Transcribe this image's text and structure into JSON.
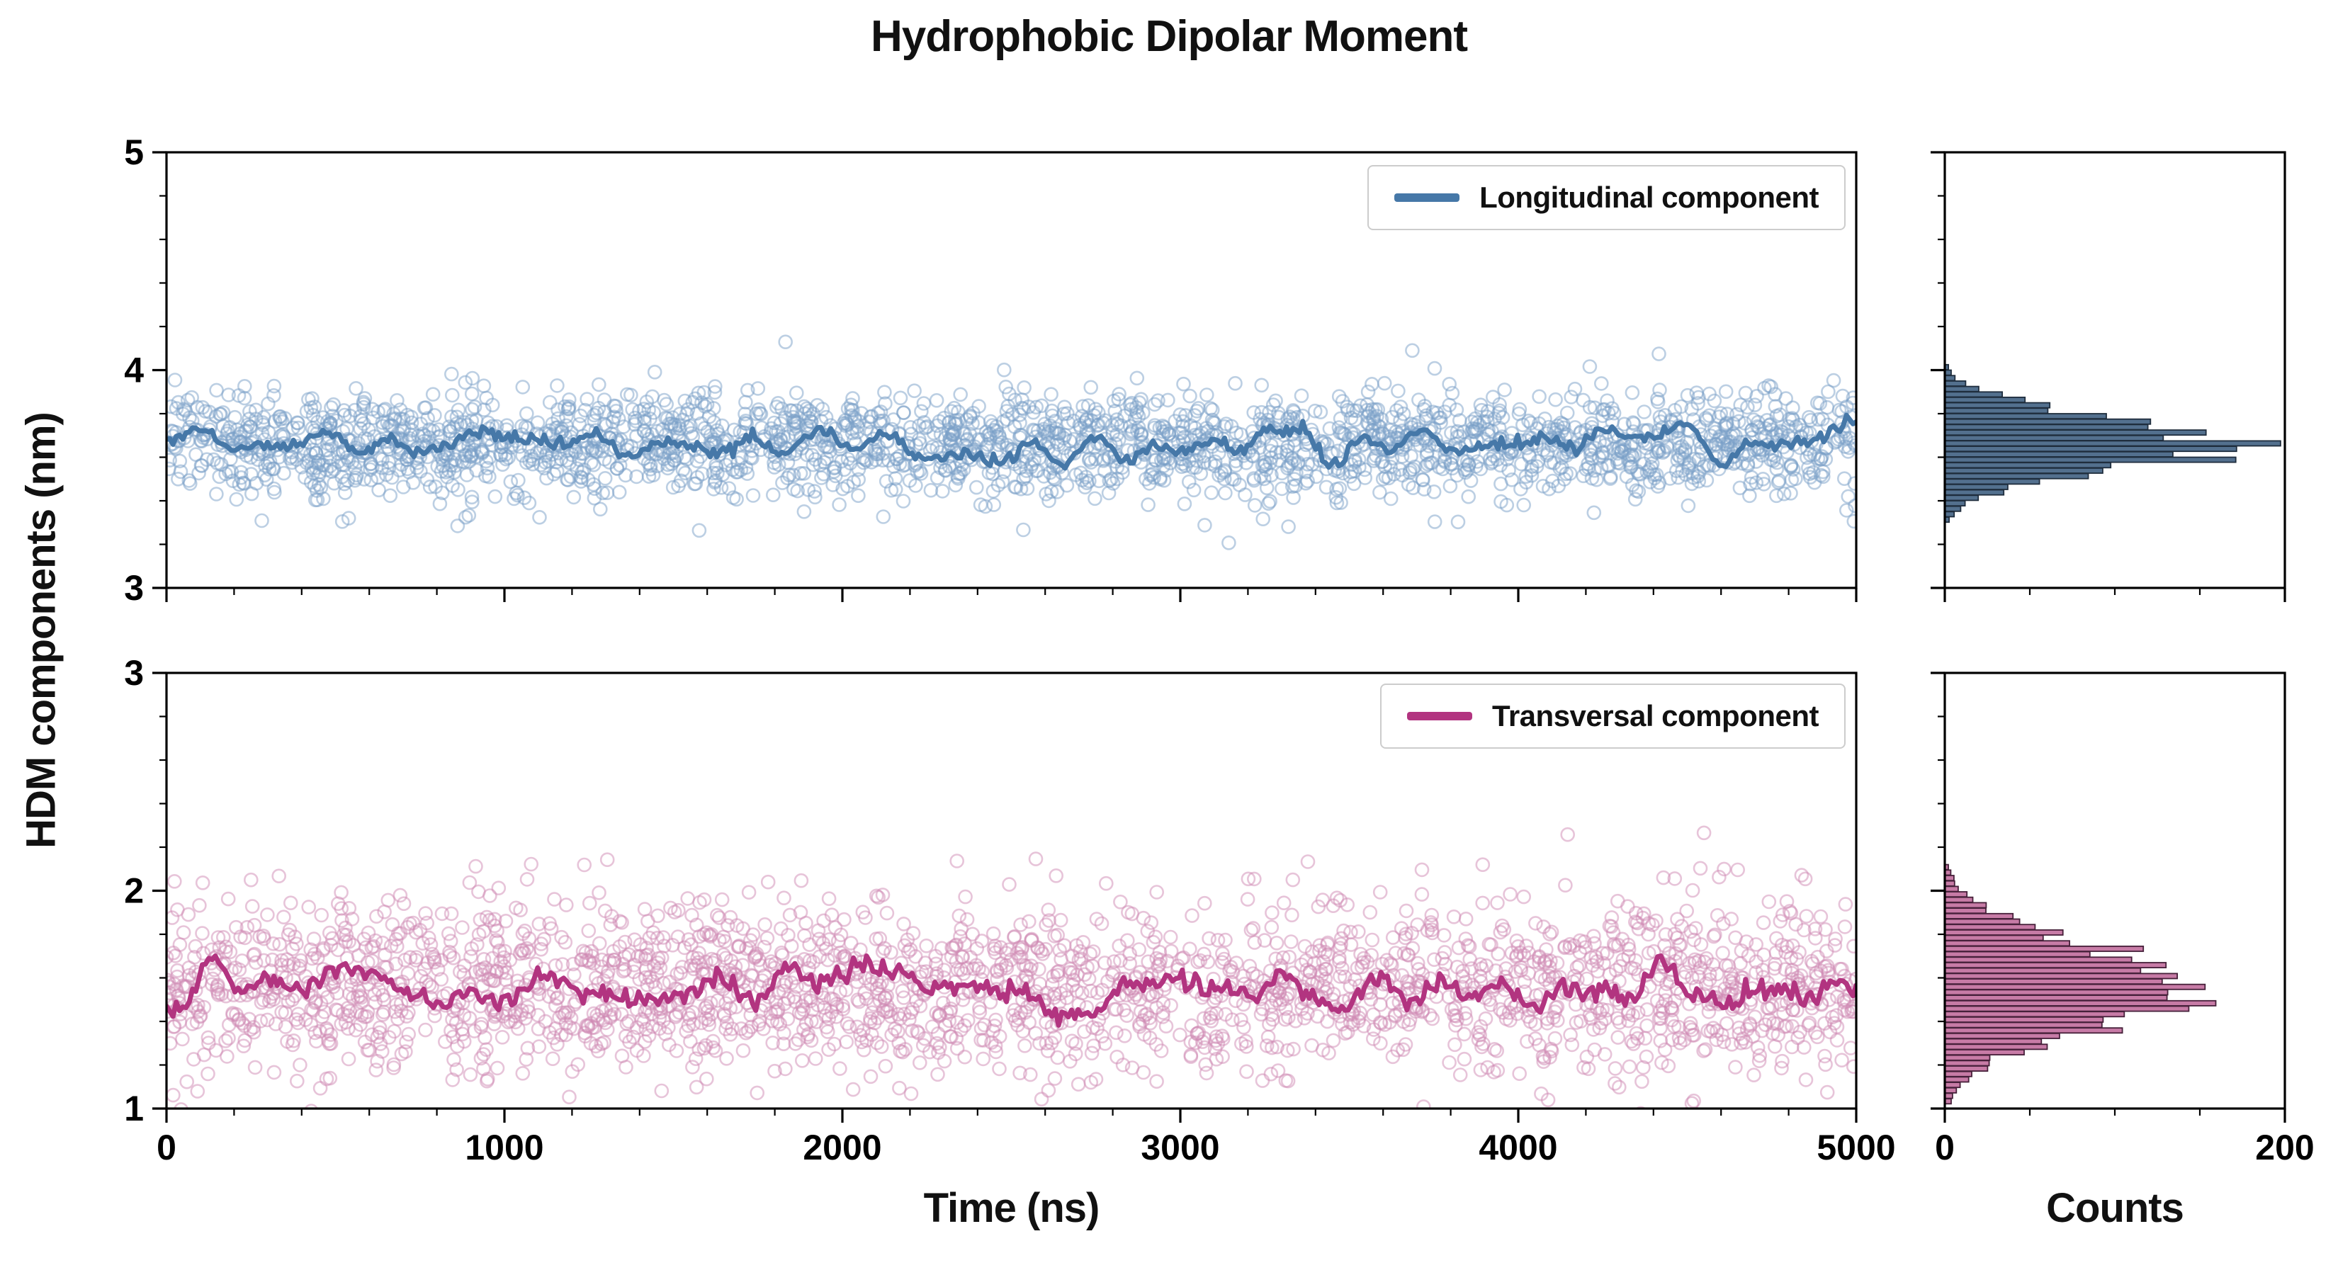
{
  "title": "Hydrophobic Dipolar Moment",
  "ylabel": "HDM components (nm)",
  "xlabel_time": "Time (ns)",
  "xlabel_counts": "Counts",
  "legend": {
    "longitudinal": "Longitudinal component",
    "transversal": "Transversal component"
  },
  "colors": {
    "longitudinal_scatter": "#7aa0c8",
    "longitudinal_line": "#4678a8",
    "transversal_scatter": "#cf8ab4",
    "transversal_line": "#b23480",
    "hist_top_fill": "#53708e",
    "hist_top_edge": "#1f2d3d",
    "hist_bottom_fill": "#c77ba6",
    "hist_bottom_edge": "#46203a",
    "axis": "#000000",
    "legend_border": "#cccccc"
  },
  "chart_data": [
    {
      "id": "longitudinal-timeseries",
      "panel": "main_top",
      "type": "scatter",
      "legend": "Longitudinal component",
      "xlim": [
        0,
        5000
      ],
      "ylim": [
        3,
        5
      ],
      "xticks": [
        0,
        1000,
        2000,
        3000,
        4000,
        5000
      ],
      "yticks": [
        3,
        4,
        5
      ],
      "xminor": 200,
      "yminor": 0.2,
      "show_xtick_labels": false,
      "show_ytick_labels": true,
      "scatter": {
        "n": 2400,
        "mean": 3.66,
        "std": 0.12,
        "color": "#7aa0c8",
        "alpha": 0.5,
        "seed": 11
      },
      "line": {
        "mean": 3.66,
        "std": 0.035,
        "color": "#4678a8",
        "width": 7
      }
    },
    {
      "id": "longitudinal-histogram",
      "panel": "hist_top",
      "type": "histogram",
      "orientation": "horizontal",
      "xlim": [
        0,
        200
      ],
      "ylim": [
        3,
        5
      ],
      "xticks": [
        0,
        200
      ],
      "yticks": [
        3,
        4,
        5
      ],
      "xminor": 50,
      "yminor": 0.2,
      "show_xtick_labels": false,
      "show_ytick_labels": false,
      "mean": 3.66,
      "std": 0.12,
      "peak": 170,
      "bin_size": 0.025,
      "range": [
        3.2,
        4.12
      ],
      "fill": "#53708e",
      "edge": "#1f2d3d",
      "seed": 21
    },
    {
      "id": "transversal-timeseries",
      "panel": "main_bottom",
      "type": "scatter",
      "legend": "Transversal component",
      "xlim": [
        0,
        5000
      ],
      "ylim": [
        1,
        3
      ],
      "xticks": [
        0,
        1000,
        2000,
        3000,
        4000,
        5000
      ],
      "yticks": [
        1,
        2,
        3
      ],
      "xminor": 200,
      "yminor": 0.2,
      "show_xtick_labels": true,
      "show_ytick_labels": true,
      "scatter": {
        "n": 2400,
        "mean": 1.56,
        "std": 0.2,
        "color": "#cf8ab4",
        "alpha": 0.5,
        "seed": 31
      },
      "line": {
        "mean": 1.56,
        "std": 0.05,
        "color": "#b23480",
        "width": 7
      }
    },
    {
      "id": "transversal-histogram",
      "panel": "hist_bottom",
      "type": "histogram",
      "orientation": "horizontal",
      "xlim": [
        0,
        200
      ],
      "ylim": [
        1,
        3
      ],
      "xticks": [
        0,
        200
      ],
      "yticks": [
        1,
        2,
        3
      ],
      "xminor": 50,
      "yminor": 0.2,
      "show_xtick_labels": true,
      "show_ytick_labels": false,
      "mean": 1.56,
      "std": 0.19,
      "peak": 150,
      "bin_size": 0.025,
      "range": [
        1.02,
        2.28
      ],
      "fill": "#c77ba6",
      "edge": "#46203a",
      "seed": 41
    }
  ]
}
